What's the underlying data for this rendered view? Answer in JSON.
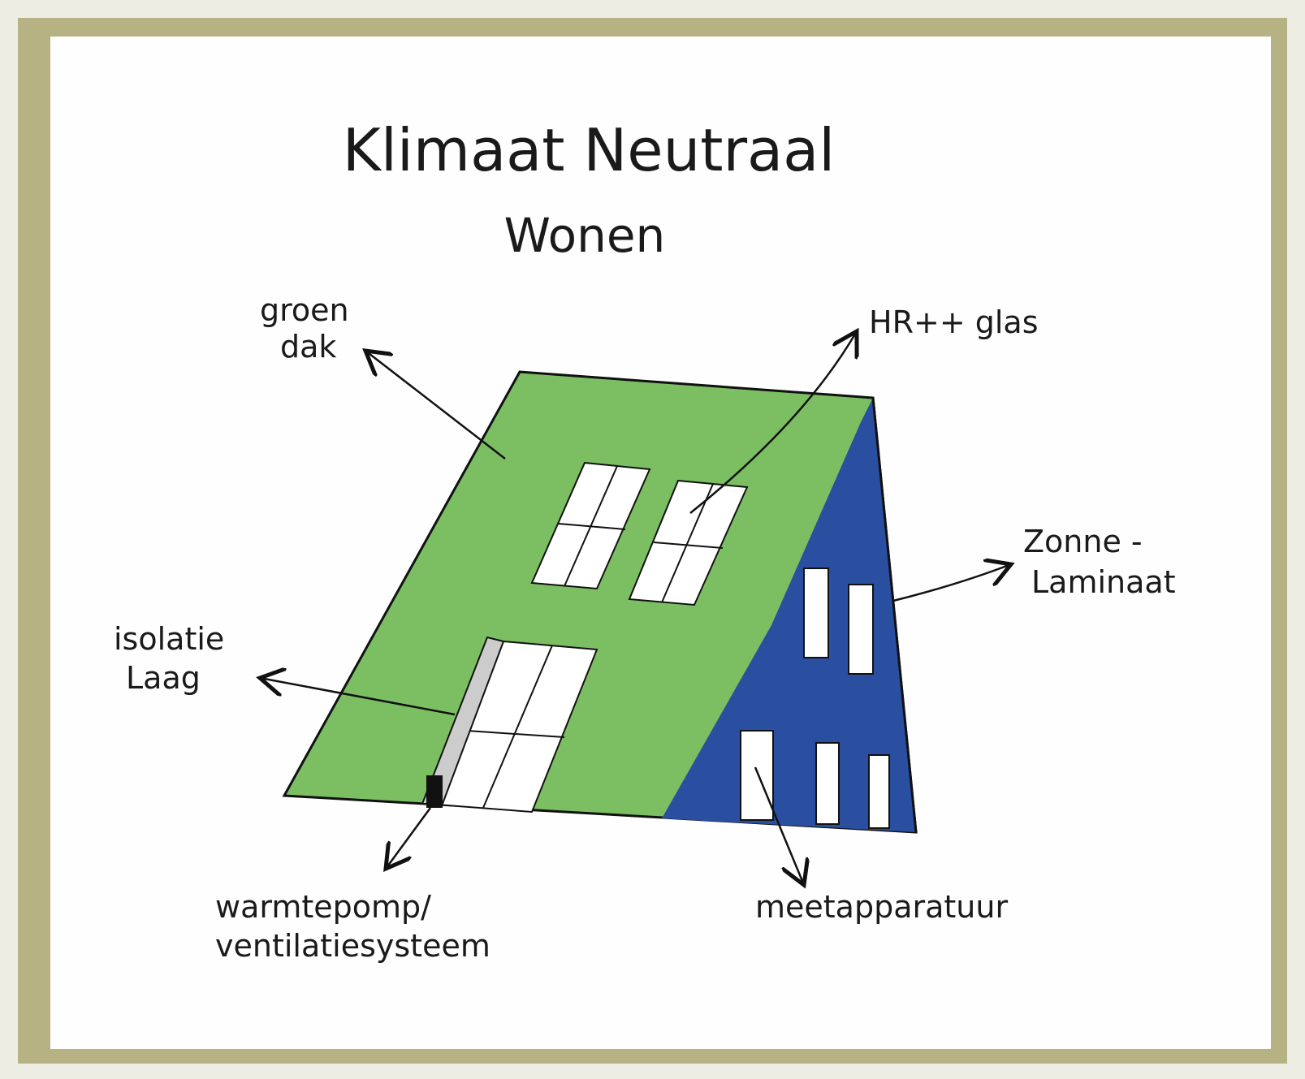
{
  "title": "Klimaat Neutraal",
  "subtitle": "Wonen",
  "labels": [
    {
      "lines": [
        "groen",
        "dak"
      ]
    },
    {
      "lines": [
        "HR++ glas"
      ]
    },
    {
      "lines": [
        "Zonne -",
        "Laminaat"
      ]
    },
    {
      "lines": [
        "isolatie",
        "Laag"
      ]
    },
    {
      "lines": [
        "warmtepomp/",
        "ventilatiesysteem"
      ]
    },
    {
      "lines": [
        "meetapparatuur"
      ]
    }
  ]
}
